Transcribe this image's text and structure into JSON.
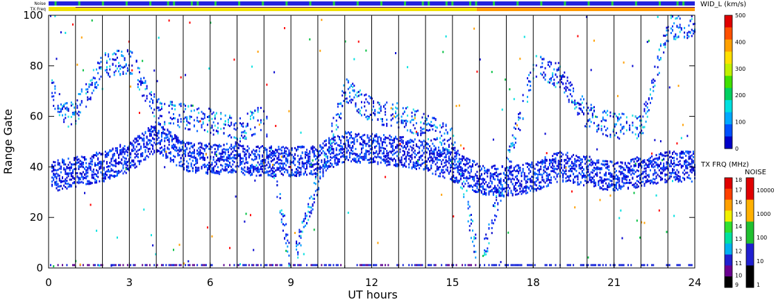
{
  "chart_data": {
    "type": "heatmap",
    "title": "",
    "xlabel": "UT hours",
    "ylabel": "Range Gate",
    "xlim": [
      0,
      24
    ],
    "ylim": [
      0,
      100
    ],
    "x_ticks": [
      "0",
      "3",
      "6",
      "9",
      "12",
      "15",
      "18",
      "21",
      "24"
    ],
    "y_ticks": [
      "0",
      "20",
      "40",
      "60",
      "80",
      "100"
    ],
    "x_tick_values": [
      0,
      3,
      6,
      9,
      12,
      15,
      18,
      21,
      24
    ],
    "y_tick_values": [
      0,
      20,
      40,
      60,
      80,
      100
    ],
    "vertical_hour_lines": [
      1,
      2,
      3,
      4,
      5,
      6,
      7,
      8,
      9,
      10,
      11,
      12,
      13,
      14,
      15,
      16,
      17,
      18,
      19,
      20,
      21,
      22,
      23
    ],
    "grid": false,
    "top_strips": [
      {
        "label": "Noise",
        "segments": [
          {
            "from": 0,
            "to": 15.9,
            "color": "#2222dd"
          },
          {
            "from": 15.9,
            "to": 24,
            "color": "#2222dd"
          }
        ],
        "accent": "#22cc44"
      },
      {
        "label": "TX Freq",
        "segments": [
          {
            "from": 0,
            "to": 15.9,
            "color": "#f0e000"
          },
          {
            "from": 15.9,
            "to": 24,
            "color": "#ff9a00"
          }
        ]
      }
    ],
    "data_bands": [
      {
        "label": "lower echo band",
        "points": [
          [
            0.1,
            36
          ],
          [
            1,
            38
          ],
          [
            2,
            40
          ],
          [
            3,
            44
          ],
          [
            4,
            52
          ],
          [
            5,
            44
          ],
          [
            6,
            43
          ],
          [
            7,
            43
          ],
          [
            8,
            42
          ],
          [
            9,
            42
          ],
          [
            10,
            43
          ],
          [
            11,
            48
          ],
          [
            12,
            47
          ],
          [
            13,
            46
          ],
          [
            14,
            44
          ],
          [
            15,
            40
          ],
          [
            16,
            35
          ],
          [
            17,
            34
          ],
          [
            18,
            36
          ],
          [
            19,
            40
          ],
          [
            20,
            38
          ],
          [
            21,
            36
          ],
          [
            22,
            38
          ],
          [
            23,
            40
          ],
          [
            24,
            40
          ]
        ]
      },
      {
        "label": "upper echo band",
        "points": [
          [
            0.1,
            70
          ],
          [
            0.6,
            60
          ],
          [
            1,
            62
          ],
          [
            2,
            80
          ],
          [
            3,
            82
          ],
          [
            4,
            62
          ],
          [
            5,
            60
          ],
          [
            6,
            58
          ],
          [
            7,
            54
          ],
          [
            8,
            60
          ],
          [
            9,
            0
          ],
          [
            11,
            70
          ],
          [
            12,
            62
          ],
          [
            13,
            60
          ],
          [
            14,
            56
          ],
          [
            15,
            50
          ],
          [
            16,
            0
          ],
          [
            18,
            80
          ],
          [
            19,
            75
          ],
          [
            20,
            60
          ],
          [
            21,
            56
          ],
          [
            22,
            56
          ],
          [
            23,
            95
          ],
          [
            24,
            96
          ]
        ]
      }
    ],
    "colorbars": [
      {
        "title": "WID_L (km/s)",
        "ticks": [
          "0",
          "100",
          "200",
          "300",
          "400",
          "500"
        ],
        "range": [
          0,
          500
        ],
        "colors": [
          "#0000c8",
          "#0050ff",
          "#00a8ff",
          "#00e0e0",
          "#00d060",
          "#40e000",
          "#c0f000",
          "#ffe000",
          "#ffa000",
          "#ff5000",
          "#e00000"
        ]
      },
      {
        "title": "TX FRQ (MHz)",
        "ticks": [
          "9",
          "10",
          "11",
          "12",
          "13",
          "14",
          "15",
          "16",
          "17",
          "18"
        ],
        "range": [
          9,
          18
        ],
        "colors": [
          "#000000",
          "#6a0090",
          "#2020d0",
          "#00b0f0",
          "#00e0a0",
          "#30e030",
          "#f0f000",
          "#ffa000",
          "#ff4000",
          "#e00000"
        ]
      },
      {
        "title": "NOISE",
        "ticks": [
          "1",
          "10",
          "100",
          "1000",
          "10000"
        ],
        "range": [
          1,
          10000
        ],
        "colors": [
          "#000000",
          "#2020d0",
          "#20c030",
          "#ffb000",
          "#e00000"
        ]
      }
    ]
  }
}
